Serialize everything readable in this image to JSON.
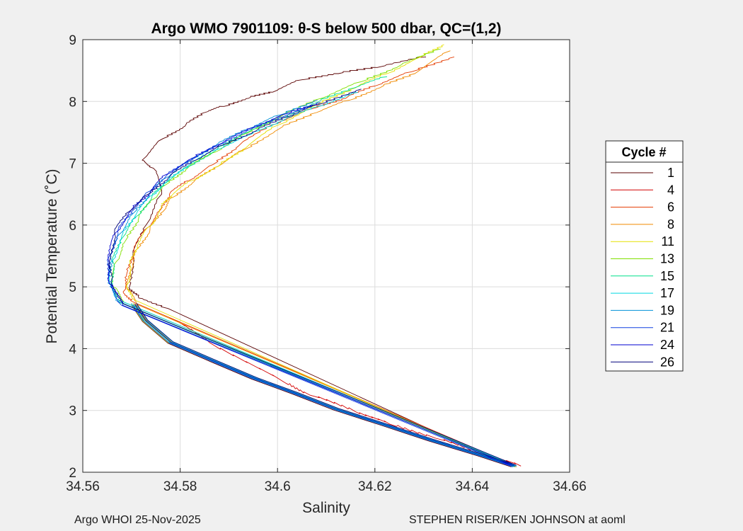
{
  "chart_data": {
    "type": "line",
    "title": "Argo WMO 7901109: θ-S below 500 dbar,  QC=(1,2)",
    "xlabel": "Salinity",
    "ylabel": "Potential Temperature (˚C)",
    "xlim": [
      34.56,
      34.66
    ],
    "ylim": [
      2,
      9
    ],
    "xticks": [
      "34.56",
      "34.58",
      "34.6",
      "34.62",
      "34.64",
      "34.66"
    ],
    "yticks": [
      "2",
      "3",
      "4",
      "5",
      "6",
      "7",
      "8",
      "9"
    ],
    "grid": true,
    "legend": {
      "title": "Cycle #",
      "placement": "right"
    },
    "series": [
      {
        "name": "1",
        "color": "#5a0000",
        "x": [
          34.5775,
          34.5715,
          34.5695,
          34.5703,
          34.573,
          34.5762,
          34.5745,
          34.5722,
          34.5765,
          34.581,
          34.585,
          34.589,
          34.594,
          34.599,
          34.605,
          34.6125,
          34.6205,
          34.6305
        ],
        "y": [
          4.65,
          4.82,
          4.98,
          5.5,
          6.0,
          6.5,
          6.92,
          7.05,
          7.4,
          7.6,
          7.82,
          7.92,
          8.05,
          8.15,
          8.35,
          8.45,
          8.55,
          8.72
        ]
      },
      {
        "name": "4",
        "color": "#d40000",
        "x": [
          34.5778,
          34.586,
          34.6015,
          34.6066,
          34.616,
          34.623,
          34.6325,
          34.641,
          34.65
        ],
        "y": [
          4.5,
          4.1,
          3.45,
          3.25,
          2.98,
          2.78,
          2.55,
          2.32,
          2.1
        ]
      },
      {
        "name": "6",
        "color": "#e43a00",
        "x": [
          34.5705,
          34.5683,
          34.569,
          34.5705,
          34.5732,
          34.576,
          34.5778,
          34.5818,
          34.5868,
          34.592,
          34.599,
          34.607,
          34.614,
          34.62,
          34.6275,
          34.6363
        ],
        "y": [
          4.75,
          4.92,
          5.2,
          5.6,
          5.95,
          6.25,
          6.5,
          6.72,
          6.98,
          7.28,
          7.62,
          7.88,
          8.05,
          8.25,
          8.48,
          8.72
        ]
      },
      {
        "name": "8",
        "color": "#f08a00",
        "x": [
          34.571,
          34.5692,
          34.5698,
          34.5712,
          34.5738,
          34.5765,
          34.5785,
          34.5828,
          34.5878,
          34.5932,
          34.6002,
          34.608,
          34.6148,
          34.621,
          34.6282,
          34.6355
        ],
        "y": [
          4.72,
          4.95,
          5.25,
          5.62,
          5.92,
          6.22,
          6.45,
          6.7,
          6.95,
          7.22,
          7.55,
          7.82,
          8.02,
          8.22,
          8.45,
          8.82
        ]
      },
      {
        "name": "11",
        "color": "#e6e000",
        "x": [
          34.5703,
          34.5692,
          34.5697,
          34.5713,
          34.5738,
          34.5762,
          34.5783,
          34.5825,
          34.5878,
          34.5935,
          34.6002,
          34.6082,
          34.616,
          34.6225,
          34.6295,
          34.6342
        ],
        "y": [
          4.8,
          5.05,
          5.35,
          5.68,
          5.98,
          6.3,
          6.48,
          6.72,
          6.95,
          7.25,
          7.62,
          7.95,
          8.22,
          8.45,
          8.72,
          8.92
        ]
      },
      {
        "name": "13",
        "color": "#80e000",
        "x": [
          34.5685,
          34.5662,
          34.5668,
          34.5688,
          34.5715,
          34.5745,
          34.577,
          34.5815,
          34.5872,
          34.5935,
          34.6005,
          34.609,
          34.6172,
          34.6245,
          34.6335
        ],
        "y": [
          4.75,
          5.0,
          5.4,
          5.75,
          6.12,
          6.42,
          6.65,
          6.92,
          7.18,
          7.48,
          7.75,
          8.05,
          8.32,
          8.55,
          8.85
        ]
      },
      {
        "name": "15",
        "color": "#00e08a",
        "x": [
          34.5675,
          34.5658,
          34.5662,
          34.568,
          34.5712,
          34.5742,
          34.577,
          34.5818,
          34.5872,
          34.5932,
          34.6005,
          34.608,
          34.6158,
          34.6225
        ],
        "y": [
          4.75,
          5.05,
          5.4,
          5.78,
          6.15,
          6.45,
          6.68,
          6.95,
          7.2,
          7.48,
          7.72,
          7.98,
          8.22,
          8.4
        ]
      },
      {
        "name": "17",
        "color": "#00d8e0",
        "x": [
          34.567,
          34.5655,
          34.566,
          34.568,
          34.571,
          34.5742,
          34.5772,
          34.582,
          34.5875,
          34.594,
          34.6008,
          34.6085,
          34.6165
        ],
        "y": [
          4.8,
          5.1,
          5.42,
          5.82,
          6.18,
          6.48,
          6.7,
          6.98,
          7.22,
          7.45,
          7.68,
          7.92,
          8.15
        ]
      },
      {
        "name": "19",
        "color": "#0090d8",
        "x": [
          34.5668,
          34.5652,
          34.5658,
          34.5675,
          34.5705,
          34.5738,
          34.5768,
          34.5815,
          34.5872,
          34.5938,
          34.6005,
          34.6082
        ],
        "y": [
          4.78,
          5.12,
          5.45,
          5.85,
          6.2,
          6.5,
          6.75,
          7.02,
          7.28,
          7.55,
          7.78,
          8.02
        ]
      },
      {
        "name": "21",
        "color": "#1040e0",
        "x": [
          34.568,
          34.5652,
          34.5655,
          34.5672,
          34.5705,
          34.5738,
          34.5772,
          34.5822,
          34.588,
          34.5945,
          34.601,
          34.6085
        ],
        "y": [
          4.7,
          5.1,
          5.5,
          5.9,
          6.25,
          6.55,
          6.8,
          7.05,
          7.3,
          7.55,
          7.75,
          7.95
        ]
      },
      {
        "name": "24",
        "color": "#0000d0",
        "x": [
          34.5682,
          34.5655,
          34.5652,
          34.5668,
          34.57,
          34.5738,
          34.5772,
          34.5825,
          34.5885,
          34.5952,
          34.6018,
          34.6088
        ],
        "y": [
          4.7,
          5.05,
          5.45,
          5.88,
          6.25,
          6.52,
          6.82,
          7.08,
          7.32,
          7.58,
          7.8,
          7.98
        ]
      },
      {
        "name": "26",
        "color": "#00007a",
        "x": [
          34.5685,
          34.5658,
          34.5655,
          34.5665,
          34.5695,
          34.5735,
          34.5778,
          34.5832,
          34.589,
          34.5955,
          34.602,
          34.6085,
          34.6172
        ],
        "y": [
          4.72,
          5.08,
          5.42,
          5.88,
          6.22,
          6.5,
          6.78,
          7.05,
          7.3,
          7.52,
          7.75,
          7.95,
          8.2
        ]
      }
    ],
    "common_deep": {
      "x": [
        34.5705,
        34.5728,
        34.578,
        34.5868,
        34.5952,
        34.6035,
        34.612,
        34.6215,
        34.6315,
        34.6415,
        34.6485
      ],
      "y": [
        4.72,
        4.45,
        4.1,
        3.8,
        3.52,
        3.28,
        3.02,
        2.78,
        2.52,
        2.28,
        2.1
      ]
    }
  },
  "footer": {
    "left": "Argo WHOI 25-Nov-2025",
    "right": "STEPHEN RISER/KEN JOHNSON at aoml"
  }
}
